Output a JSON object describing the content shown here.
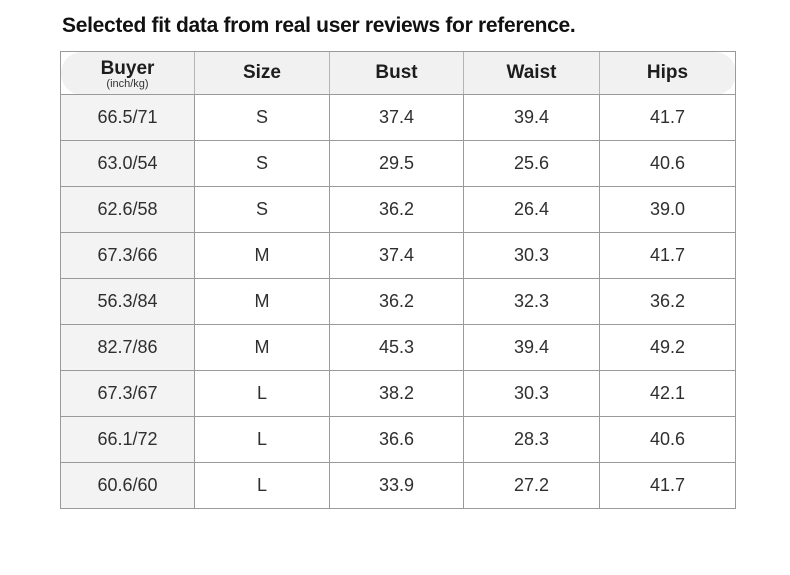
{
  "title": "Selected fit data from real user reviews for reference.",
  "table": {
    "headers": {
      "buyer": "Buyer",
      "buyer_unit": "(inch/kg)",
      "size": "Size",
      "bust": "Bust",
      "waist": "Waist",
      "hips": "Hips"
    },
    "rows": [
      {
        "buyer": "66.5/71",
        "size": "S",
        "bust": "37.4",
        "waist": "39.4",
        "hips": "41.7"
      },
      {
        "buyer": "63.0/54",
        "size": "S",
        "bust": "29.5",
        "waist": "25.6",
        "hips": "40.6"
      },
      {
        "buyer": "62.6/58",
        "size": "S",
        "bust": "36.2",
        "waist": "26.4",
        "hips": "39.0"
      },
      {
        "buyer": "67.3/66",
        "size": "M",
        "bust": "37.4",
        "waist": "30.3",
        "hips": "41.7"
      },
      {
        "buyer": "56.3/84",
        "size": "M",
        "bust": "36.2",
        "waist": "32.3",
        "hips": "36.2"
      },
      {
        "buyer": "82.7/86",
        "size": "M",
        "bust": "45.3",
        "waist": "39.4",
        "hips": "49.2"
      },
      {
        "buyer": "67.3/67",
        "size": "L",
        "bust": "38.2",
        "waist": "30.3",
        "hips": "42.1"
      },
      {
        "buyer": "66.1/72",
        "size": "L",
        "bust": "36.6",
        "waist": "28.3",
        "hips": "40.6"
      },
      {
        "buyer": "60.6/60",
        "size": "L",
        "bust": "33.9",
        "waist": "27.2",
        "hips": "41.7"
      }
    ]
  }
}
